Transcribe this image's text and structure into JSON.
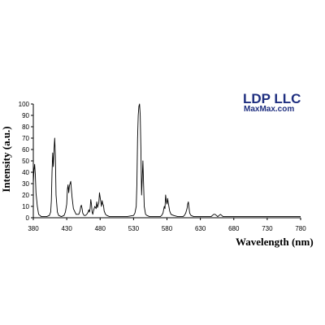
{
  "brand": {
    "name": "LDP LLC",
    "url": "MaxMax.com",
    "color": "#1f2f80"
  },
  "chart_data": {
    "type": "line",
    "title": "",
    "xlabel": "Wavelength (nm)",
    "ylabel": "Intensity (a.u.)",
    "xlim": [
      380,
      780
    ],
    "ylim": [
      0,
      100
    ],
    "x_ticks": [
      380,
      430,
      480,
      530,
      580,
      630,
      680,
      730,
      780
    ],
    "y_ticks": [
      0,
      10,
      20,
      30,
      40,
      50,
      60,
      70,
      80,
      90,
      100
    ],
    "grid": false,
    "legend": "none",
    "series": [
      {
        "color": "#000000",
        "x": [
          380,
          381,
          382,
          383,
          384,
          386,
          388,
          392,
          396,
          400,
          404,
          406,
          407,
          408,
          409,
          410,
          411,
          412,
          413,
          414,
          416,
          418,
          422,
          426,
          428,
          430,
          431,
          432,
          433,
          434,
          436,
          438,
          440,
          444,
          448,
          450,
          451,
          452,
          453,
          454,
          456,
          458,
          460,
          462,
          463,
          464,
          465,
          466,
          467,
          468,
          469,
          470,
          472,
          474,
          475,
          476,
          477,
          478,
          479,
          480,
          481,
          482,
          483,
          484,
          485,
          486,
          488,
          490,
          494,
          498,
          502,
          510,
          520,
          530,
          532,
          534,
          535,
          536,
          537,
          538,
          539,
          540,
          541,
          542,
          543,
          544,
          546,
          548,
          550,
          554,
          560,
          566,
          570,
          572,
          574,
          575,
          576,
          577,
          578,
          579,
          580,
          581,
          582,
          584,
          586,
          590,
          596,
          604,
          606,
          608,
          610,
          611,
          612,
          613,
          614,
          616,
          620,
          630,
          640,
          646,
          648,
          650,
          652,
          654,
          656,
          658,
          660,
          662,
          664,
          670,
          680,
          700,
          730,
          760,
          780
        ],
        "y": [
          30,
          42,
          47,
          38,
          22,
          10,
          3,
          1,
          1,
          1,
          2,
          5,
          15,
          40,
          57,
          45,
          60,
          70,
          55,
          20,
          5,
          2,
          1,
          2,
          5,
          12,
          25,
          29,
          22,
          28,
          32,
          18,
          8,
          3,
          3,
          6,
          10,
          11,
          8,
          4,
          2,
          2,
          3,
          5,
          7,
          5,
          8,
          16,
          12,
          5,
          3,
          6,
          10,
          8,
          14,
          9,
          11,
          13,
          22,
          18,
          14,
          10,
          15,
          12,
          11,
          6,
          3,
          2,
          1,
          1,
          1,
          1,
          1,
          2,
          4,
          10,
          30,
          70,
          90,
          98,
          100,
          90,
          60,
          20,
          35,
          50,
          10,
          3,
          2,
          1,
          1,
          1,
          1,
          2,
          4,
          7,
          10,
          8,
          20,
          15,
          12,
          17,
          13,
          6,
          3,
          2,
          1,
          1,
          2,
          4,
          8,
          12,
          14,
          9,
          4,
          2,
          1,
          1,
          1,
          1,
          2,
          3,
          3,
          2,
          1,
          2,
          3,
          2,
          1,
          1,
          1,
          1,
          1,
          1,
          1
        ]
      }
    ]
  }
}
